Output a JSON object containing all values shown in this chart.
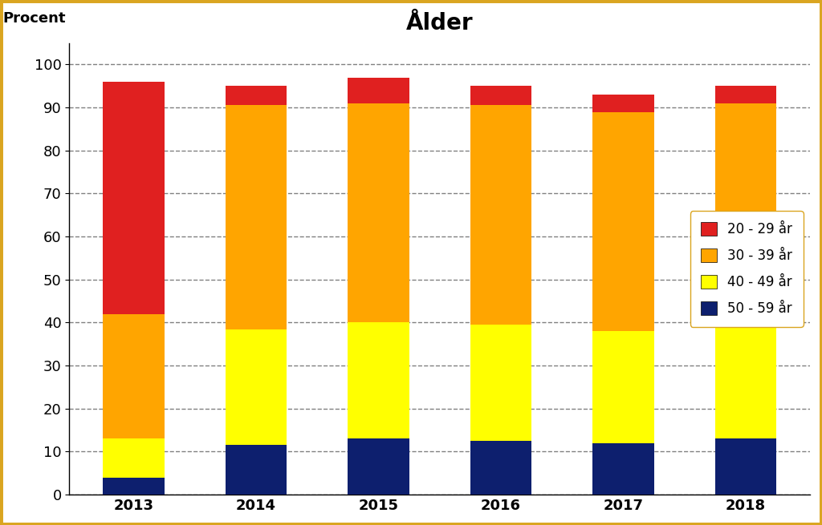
{
  "title": "Ålder",
  "ylabel": "Procent",
  "years": [
    "2013",
    "2014",
    "2015",
    "2016",
    "2017",
    "2018"
  ],
  "series": {
    "50 - 59 år": [
      4.0,
      11.5,
      13.0,
      12.5,
      12.0,
      13.0
    ],
    "40 - 49 år": [
      9.0,
      27.0,
      27.0,
      27.0,
      26.0,
      31.0
    ],
    "30 - 39 år": [
      29.0,
      52.0,
      51.0,
      51.0,
      51.0,
      47.0
    ],
    "20 - 29 år": [
      54.0,
      4.5,
      6.0,
      4.5,
      4.0,
      4.0
    ]
  },
  "colors": {
    "50 - 59 år": "#0D1F6E",
    "40 - 49 år": "#FFFF00",
    "30 - 39 år": "#FFA500",
    "20 - 29 år": "#E02020"
  },
  "ylim": [
    0,
    105
  ],
  "yticks": [
    0,
    10,
    20,
    30,
    40,
    50,
    60,
    70,
    80,
    90,
    100
  ],
  "bar_width": 0.5,
  "background_color": "#FFFFFF",
  "border_color": "#DAA520",
  "title_fontsize": 20,
  "label_fontsize": 13,
  "tick_fontsize": 13,
  "legend_fontsize": 12
}
